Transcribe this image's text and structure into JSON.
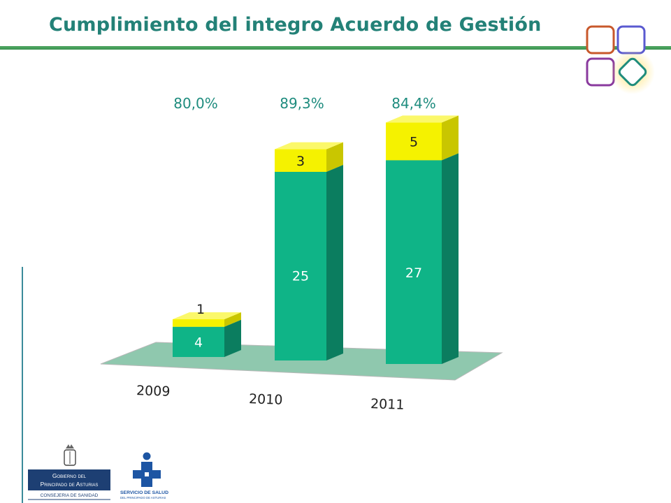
{
  "slide": {
    "title": "Cumplimiento del integro Acuerdo de Gestión"
  },
  "colors": {
    "title": "#238177",
    "green_front": "#0fb487",
    "green_side": "#0b7d5f",
    "yellow_front": "#f5f200",
    "yellow_side": "#c9c600",
    "floor": "#8fc8ae"
  },
  "chart_data": {
    "type": "bar",
    "stacked": true,
    "categories": [
      "2009",
      "2010",
      "2011"
    ],
    "series": [
      {
        "values": [
          4,
          25,
          27
        ],
        "color": "#0fb487"
      },
      {
        "values": [
          1,
          3,
          5
        ],
        "color": "#f5f200"
      }
    ],
    "annotations": [
      "80,0%",
      "89,3%",
      "84,4%"
    ],
    "grid": false,
    "legend": "none"
  },
  "logos": {
    "gobierno_line1": "Gobierno del",
    "gobierno_line2": "Principado de Asturias",
    "gobierno_line3": "CONSEJERIA DE SANIDAD",
    "sespa_line1": "SERVICIO DE SALUD",
    "sespa_line2": "DEL PRINCIPADO DE ASTURIAS"
  }
}
